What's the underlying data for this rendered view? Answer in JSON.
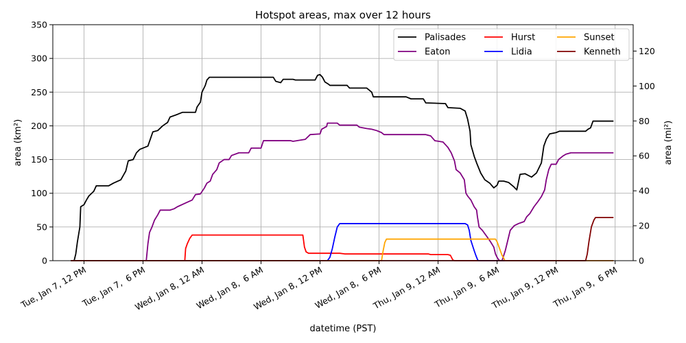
{
  "chart_data": {
    "type": "line",
    "title": "Hotspot areas, max over 12 hours",
    "xlabel": "datetime (PST)",
    "ylabel": "area (km²)",
    "ylabel_right": "area (mi²)",
    "ylim": [
      0,
      350
    ],
    "yticks": [
      0,
      50,
      100,
      150,
      200,
      250,
      300,
      350
    ],
    "ylim_right": [
      0,
      135.1
    ],
    "yticks_right": [
      0,
      20,
      40,
      60,
      80,
      100,
      120
    ],
    "xlim": [
      "2025-01-07T08:50",
      "2025-01-09T19:50"
    ],
    "xticks": [
      {
        "value": "2025-01-07T12:00",
        "label": "Tue, Jan 7, 12 PM"
      },
      {
        "value": "2025-01-07T18:00",
        "label": "Tue, Jan 7,  6 PM"
      },
      {
        "value": "2025-01-08T00:00",
        "label": "Wed, Jan 8, 12 AM"
      },
      {
        "value": "2025-01-08T06:00",
        "label": "Wed, Jan 8,  6 AM"
      },
      {
        "value": "2025-01-08T12:00",
        "label": "Wed, Jan 8, 12 PM"
      },
      {
        "value": "2025-01-08T18:00",
        "label": "Wed, Jan 8,  6 PM"
      },
      {
        "value": "2025-01-09T00:00",
        "label": "Thu, Jan 9, 12 AM"
      },
      {
        "value": "2025-01-09T06:00",
        "label": "Thu, Jan 9,  6 AM"
      },
      {
        "value": "2025-01-09T12:00",
        "label": "Thu, Jan 9, 12 PM"
      },
      {
        "value": "2025-01-09T18:00",
        "label": "Thu, Jan 9,  6 PM"
      }
    ],
    "grid": true,
    "legend": {
      "position": "top-right",
      "columns": 3
    },
    "series": [
      {
        "name": "Palisades",
        "color": "#000000",
        "points": [
          [
            "2025-01-07T10:40",
            0
          ],
          [
            "2025-01-07T11:00",
            0
          ],
          [
            "2025-01-07T11:10",
            10
          ],
          [
            "2025-01-07T11:20",
            28
          ],
          [
            "2025-01-07T11:35",
            50
          ],
          [
            "2025-01-07T11:40",
            80
          ],
          [
            "2025-01-07T12:00",
            83
          ],
          [
            "2025-01-07T12:15",
            90
          ],
          [
            "2025-01-07T12:30",
            96
          ],
          [
            "2025-01-07T13:00",
            103
          ],
          [
            "2025-01-07T13:15",
            111
          ],
          [
            "2025-01-07T14:30",
            111
          ],
          [
            "2025-01-07T15:00",
            115
          ],
          [
            "2025-01-07T15:45",
            120
          ],
          [
            "2025-01-07T16:15",
            133
          ],
          [
            "2025-01-07T16:30",
            148
          ],
          [
            "2025-01-07T17:00",
            150
          ],
          [
            "2025-01-07T17:20",
            160
          ],
          [
            "2025-01-07T17:40",
            165
          ],
          [
            "2025-01-07T18:30",
            170
          ],
          [
            "2025-01-07T19:00",
            191
          ],
          [
            "2025-01-07T19:30",
            193
          ],
          [
            "2025-01-07T20:00",
            200
          ],
          [
            "2025-01-07T20:30",
            205
          ],
          [
            "2025-01-07T20:45",
            213
          ],
          [
            "2025-01-07T21:30",
            217
          ],
          [
            "2025-01-07T22:00",
            220
          ],
          [
            "2025-01-07T23:20",
            220
          ],
          [
            "2025-01-07T23:30",
            228
          ],
          [
            "2025-01-07T23:50",
            235
          ],
          [
            "2025-01-08T00:00",
            250
          ],
          [
            "2025-01-08T00:20",
            260
          ],
          [
            "2025-01-08T00:30",
            268
          ],
          [
            "2025-01-08T00:45",
            272
          ],
          [
            "2025-01-08T07:15",
            272
          ],
          [
            "2025-01-08T07:30",
            266
          ],
          [
            "2025-01-08T08:00",
            264
          ],
          [
            "2025-01-08T08:15",
            269
          ],
          [
            "2025-01-08T09:15",
            269
          ],
          [
            "2025-01-08T09:30",
            268
          ],
          [
            "2025-01-08T11:30",
            268
          ],
          [
            "2025-01-08T11:45",
            275
          ],
          [
            "2025-01-08T12:00",
            276
          ],
          [
            "2025-01-08T12:15",
            272
          ],
          [
            "2025-01-08T12:30",
            265
          ],
          [
            "2025-01-08T12:50",
            262
          ],
          [
            "2025-01-08T13:00",
            260
          ],
          [
            "2025-01-08T14:45",
            260
          ],
          [
            "2025-01-08T15:00",
            256
          ],
          [
            "2025-01-08T16:45",
            256
          ],
          [
            "2025-01-08T17:15",
            250
          ],
          [
            "2025-01-08T17:25",
            243
          ],
          [
            "2025-01-08T20:45",
            243
          ],
          [
            "2025-01-08T21:15",
            240
          ],
          [
            "2025-01-08T22:30",
            240
          ],
          [
            "2025-01-08T22:45",
            234
          ],
          [
            "2025-01-09T00:45",
            233
          ],
          [
            "2025-01-09T01:00",
            227
          ],
          [
            "2025-01-09T02:15",
            226
          ],
          [
            "2025-01-09T02:45",
            222
          ],
          [
            "2025-01-09T03:00",
            210
          ],
          [
            "2025-01-09T03:15",
            192
          ],
          [
            "2025-01-09T03:20",
            172
          ],
          [
            "2025-01-09T03:40",
            155
          ],
          [
            "2025-01-09T03:55",
            145
          ],
          [
            "2025-01-09T04:20",
            130
          ],
          [
            "2025-01-09T04:45",
            120
          ],
          [
            "2025-01-09T05:15",
            115
          ],
          [
            "2025-01-09T05:40",
            108
          ],
          [
            "2025-01-09T06:00",
            112
          ],
          [
            "2025-01-09T06:10",
            118
          ],
          [
            "2025-01-09T06:40",
            118
          ],
          [
            "2025-01-09T07:10",
            116
          ],
          [
            "2025-01-09T07:40",
            110
          ],
          [
            "2025-01-09T08:00",
            105
          ],
          [
            "2025-01-09T08:20",
            128
          ],
          [
            "2025-01-09T08:50",
            129
          ],
          [
            "2025-01-09T09:30",
            124
          ],
          [
            "2025-01-09T10:00",
            130
          ],
          [
            "2025-01-09T10:30",
            145
          ],
          [
            "2025-01-09T10:45",
            170
          ],
          [
            "2025-01-09T11:00",
            180
          ],
          [
            "2025-01-09T11:20",
            188
          ],
          [
            "2025-01-09T12:00",
            190
          ],
          [
            "2025-01-09T12:20",
            192
          ],
          [
            "2025-01-09T15:00",
            192
          ],
          [
            "2025-01-09T15:15",
            195
          ],
          [
            "2025-01-09T15:30",
            197
          ],
          [
            "2025-01-09T15:45",
            207
          ],
          [
            "2025-01-09T17:50",
            207
          ]
        ]
      },
      {
        "name": "Eaton",
        "color": "#800080",
        "points": [
          [
            "2025-01-07T10:40",
            0
          ],
          [
            "2025-01-07T18:20",
            0
          ],
          [
            "2025-01-07T18:30",
            25
          ],
          [
            "2025-01-07T18:40",
            42
          ],
          [
            "2025-01-07T18:55",
            50
          ],
          [
            "2025-01-07T19:10",
            60
          ],
          [
            "2025-01-07T19:30",
            68
          ],
          [
            "2025-01-07T19:45",
            75
          ],
          [
            "2025-01-07T20:45",
            75
          ],
          [
            "2025-01-07T21:10",
            77
          ],
          [
            "2025-01-07T21:30",
            80
          ],
          [
            "2025-01-07T22:15",
            85
          ],
          [
            "2025-01-07T23:00",
            90
          ],
          [
            "2025-01-07T23:20",
            98
          ],
          [
            "2025-01-07T23:50",
            99
          ],
          [
            "2025-01-08T00:15",
            108
          ],
          [
            "2025-01-08T00:30",
            115
          ],
          [
            "2025-01-08T00:50",
            118
          ],
          [
            "2025-01-08T01:05",
            128
          ],
          [
            "2025-01-08T01:30",
            135
          ],
          [
            "2025-01-08T01:45",
            145
          ],
          [
            "2025-01-08T02:15",
            150
          ],
          [
            "2025-01-08T02:45",
            150
          ],
          [
            "2025-01-08T03:00",
            156
          ],
          [
            "2025-01-08T03:45",
            160
          ],
          [
            "2025-01-08T04:45",
            160
          ],
          [
            "2025-01-08T05:00",
            167
          ],
          [
            "2025-01-08T06:00",
            167
          ],
          [
            "2025-01-08T06:15",
            178
          ],
          [
            "2025-01-08T09:00",
            178
          ],
          [
            "2025-01-08T09:15",
            177
          ],
          [
            "2025-01-08T10:30",
            180
          ],
          [
            "2025-01-08T11:00",
            187
          ],
          [
            "2025-01-08T12:00",
            188
          ],
          [
            "2025-01-08T12:10",
            195
          ],
          [
            "2025-01-08T12:40",
            199
          ],
          [
            "2025-01-08T12:45",
            204
          ],
          [
            "2025-01-08T13:45",
            204
          ],
          [
            "2025-01-08T14:00",
            201
          ],
          [
            "2025-01-08T15:45",
            201
          ],
          [
            "2025-01-08T16:00",
            198
          ],
          [
            "2025-01-08T16:45",
            196
          ],
          [
            "2025-01-08T17:15",
            195
          ],
          [
            "2025-01-08T17:45",
            193
          ],
          [
            "2025-01-08T18:15",
            190
          ],
          [
            "2025-01-08T18:30",
            187
          ],
          [
            "2025-01-08T22:45",
            187
          ],
          [
            "2025-01-08T23:15",
            185
          ],
          [
            "2025-01-08T23:40",
            178
          ],
          [
            "2025-01-09T00:30",
            176
          ],
          [
            "2025-01-09T00:45",
            172
          ],
          [
            "2025-01-09T01:00",
            168
          ],
          [
            "2025-01-09T01:20",
            160
          ],
          [
            "2025-01-09T01:40",
            148
          ],
          [
            "2025-01-09T01:50",
            135
          ],
          [
            "2025-01-09T02:15",
            130
          ],
          [
            "2025-01-09T02:40",
            120
          ],
          [
            "2025-01-09T02:50",
            100
          ],
          [
            "2025-01-09T03:00",
            96
          ],
          [
            "2025-01-09T03:20",
            90
          ],
          [
            "2025-01-09T03:40",
            80
          ],
          [
            "2025-01-09T03:55",
            75
          ],
          [
            "2025-01-09T04:00",
            65
          ],
          [
            "2025-01-09T04:10",
            50
          ],
          [
            "2025-01-09T04:30",
            45
          ],
          [
            "2025-01-09T04:45",
            40
          ],
          [
            "2025-01-09T05:00",
            35
          ],
          [
            "2025-01-09T05:20",
            28
          ],
          [
            "2025-01-09T05:40",
            20
          ],
          [
            "2025-01-09T05:50",
            10
          ],
          [
            "2025-01-09T06:00",
            5
          ],
          [
            "2025-01-09T06:05",
            3
          ],
          [
            "2025-01-09T06:15",
            0
          ],
          [
            "2025-01-09T06:30",
            0
          ],
          [
            "2025-01-09T06:50",
            15
          ],
          [
            "2025-01-09T07:05",
            30
          ],
          [
            "2025-01-09T07:20",
            45
          ],
          [
            "2025-01-09T07:45",
            52
          ],
          [
            "2025-01-09T08:10",
            55
          ],
          [
            "2025-01-09T08:45",
            58
          ],
          [
            "2025-01-09T09:00",
            65
          ],
          [
            "2025-01-09T09:20",
            70
          ],
          [
            "2025-01-09T09:45",
            80
          ],
          [
            "2025-01-09T10:10",
            88
          ],
          [
            "2025-01-09T10:30",
            95
          ],
          [
            "2025-01-09T10:50",
            105
          ],
          [
            "2025-01-09T11:00",
            120
          ],
          [
            "2025-01-09T11:15",
            135
          ],
          [
            "2025-01-09T11:30",
            143
          ],
          [
            "2025-01-09T12:00",
            143
          ],
          [
            "2025-01-09T12:15",
            150
          ],
          [
            "2025-01-09T12:40",
            155
          ],
          [
            "2025-01-09T13:00",
            158
          ],
          [
            "2025-01-09T13:30",
            160
          ],
          [
            "2025-01-09T17:50",
            160
          ]
        ]
      },
      {
        "name": "Hurst",
        "color": "#ff0000",
        "points": [
          [
            "2025-01-07T10:40",
            0
          ],
          [
            "2025-01-07T22:15",
            0
          ],
          [
            "2025-01-07T22:20",
            18
          ],
          [
            "2025-01-07T22:30",
            25
          ],
          [
            "2025-01-07T22:45",
            33
          ],
          [
            "2025-01-07T23:00",
            38
          ],
          [
            "2025-01-08T10:15",
            38
          ],
          [
            "2025-01-08T10:25",
            20
          ],
          [
            "2025-01-08T10:35",
            13
          ],
          [
            "2025-01-08T10:50",
            11
          ],
          [
            "2025-01-08T14:00",
            11
          ],
          [
            "2025-01-08T14:30",
            10
          ],
          [
            "2025-01-08T23:00",
            10
          ],
          [
            "2025-01-08T23:15",
            9
          ],
          [
            "2025-01-09T01:00",
            9
          ],
          [
            "2025-01-09T01:15",
            8
          ],
          [
            "2025-01-09T01:30",
            1
          ],
          [
            "2025-01-09T01:40",
            0
          ],
          [
            "2025-01-09T17:50",
            0
          ]
        ]
      },
      {
        "name": "Lidia",
        "color": "#0000ff",
        "points": [
          [
            "2025-01-07T10:40",
            0
          ],
          [
            "2025-01-08T12:45",
            0
          ],
          [
            "2025-01-08T13:00",
            5
          ],
          [
            "2025-01-08T13:15",
            18
          ],
          [
            "2025-01-08T13:30",
            35
          ],
          [
            "2025-01-08T13:45",
            50
          ],
          [
            "2025-01-08T14:00",
            55
          ],
          [
            "2025-01-09T02:45",
            55
          ],
          [
            "2025-01-09T03:00",
            53
          ],
          [
            "2025-01-09T03:10",
            45
          ],
          [
            "2025-01-09T03:20",
            30
          ],
          [
            "2025-01-09T03:40",
            15
          ],
          [
            "2025-01-09T03:50",
            8
          ],
          [
            "2025-01-09T04:00",
            2
          ],
          [
            "2025-01-09T04:05",
            0
          ],
          [
            "2025-01-09T17:50",
            0
          ]
        ]
      },
      {
        "name": "Sunset",
        "color": "#ffa500",
        "points": [
          [
            "2025-01-07T10:40",
            0
          ],
          [
            "2025-01-08T18:15",
            0
          ],
          [
            "2025-01-08T18:25",
            15
          ],
          [
            "2025-01-08T18:35",
            27
          ],
          [
            "2025-01-08T18:45",
            32
          ],
          [
            "2025-01-09T05:50",
            32
          ],
          [
            "2025-01-09T06:00",
            28
          ],
          [
            "2025-01-09T06:15",
            18
          ],
          [
            "2025-01-09T06:30",
            8
          ],
          [
            "2025-01-09T06:40",
            4
          ],
          [
            "2025-01-09T06:45",
            1
          ],
          [
            "2025-01-09T06:50",
            0
          ],
          [
            "2025-01-09T17:50",
            0
          ]
        ]
      },
      {
        "name": "Kenneth",
        "color": "#800000",
        "points": [
          [
            "2025-01-07T10:40",
            0
          ],
          [
            "2025-01-09T15:00",
            0
          ],
          [
            "2025-01-09T15:10",
            10
          ],
          [
            "2025-01-09T15:20",
            28
          ],
          [
            "2025-01-09T15:35",
            50
          ],
          [
            "2025-01-09T15:50",
            60
          ],
          [
            "2025-01-09T16:00",
            64
          ],
          [
            "2025-01-09T17:50",
            64
          ]
        ]
      }
    ]
  }
}
